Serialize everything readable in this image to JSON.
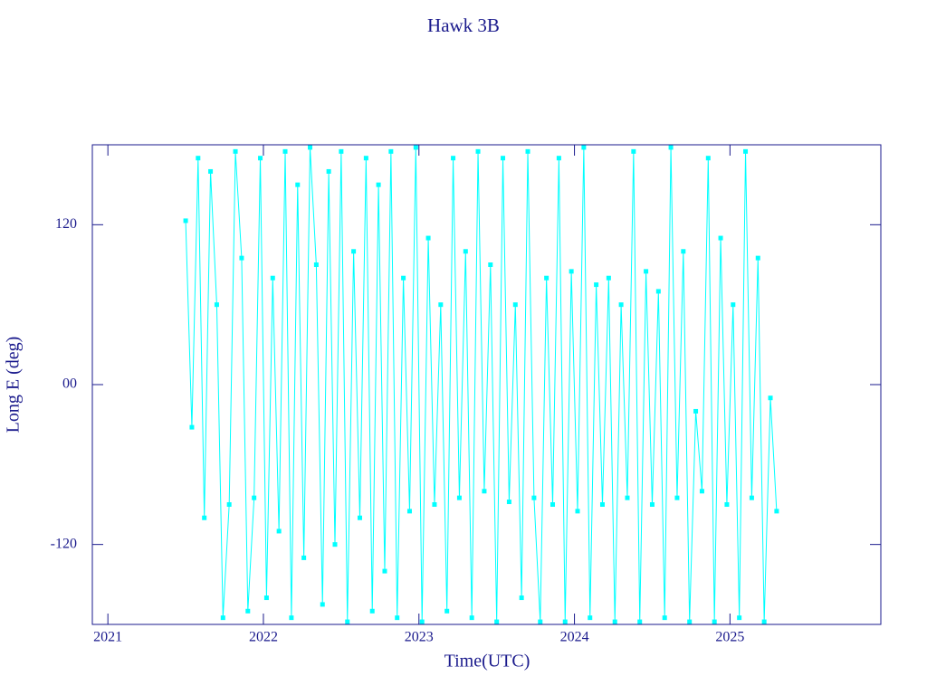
{
  "chart_data": {
    "type": "line",
    "title": "Hawk 3B",
    "x_label": "Time(UTC)",
    "y_label": "Long E (deg)",
    "color": "#00ffff",
    "xlim": [
      2020.9,
      2025.97
    ],
    "xticks": [
      2021,
      2022,
      2023,
      2024,
      2025
    ],
    "ylim": [
      -180,
      180
    ],
    "yticks": [
      -120,
      {
        "value": 0,
        "label": "00"
      },
      120
    ],
    "x": [
      2021.5,
      2021.54,
      2021.58,
      2021.62,
      2021.66,
      2021.7,
      2021.74,
      2021.78,
      2021.82,
      2021.86,
      2021.9,
      2021.94,
      2021.98,
      2022.02,
      2022.06,
      2022.1,
      2022.14,
      2022.18,
      2022.22,
      2022.26,
      2022.3,
      2022.34,
      2022.38,
      2022.42,
      2022.46,
      2022.5,
      2022.54,
      2022.58,
      2022.62,
      2022.66,
      2022.7,
      2022.74,
      2022.78,
      2022.82,
      2022.86,
      2022.9,
      2022.94,
      2022.98,
      2023.02,
      2023.06,
      2023.1,
      2023.14,
      2023.18,
      2023.22,
      2023.26,
      2023.3,
      2023.34,
      2023.38,
      2023.42,
      2023.46,
      2023.5,
      2023.54,
      2023.58,
      2023.62,
      2023.66,
      2023.7,
      2023.74,
      2023.78,
      2023.82,
      2023.86,
      2023.9,
      2023.94,
      2023.98,
      2024.02,
      2024.06,
      2024.1,
      2024.14,
      2024.18,
      2024.22,
      2024.26,
      2024.3,
      2024.34,
      2024.38,
      2024.42,
      2024.46,
      2024.5,
      2024.54,
      2024.58,
      2024.62,
      2024.66,
      2024.7,
      2024.74,
      2024.78,
      2024.82,
      2024.86,
      2024.9,
      2024.94,
      2024.98,
      2025.02,
      2025.06,
      2025.1,
      2025.14,
      2025.18,
      2025.22,
      2025.26,
      2025.3
    ],
    "values": [
      123,
      -32,
      170,
      -100,
      160,
      60,
      -175,
      -90,
      175,
      95,
      -170,
      -85,
      170,
      -160,
      80,
      -110,
      175,
      -175,
      150,
      -130,
      178,
      90,
      -165,
      160,
      -120,
      175,
      -178,
      100,
      -100,
      170,
      -170,
      150,
      -140,
      175,
      -175,
      80,
      -95,
      178,
      -178,
      110,
      -90,
      60,
      -170,
      170,
      -85,
      100,
      -175,
      175,
      -80,
      90,
      -178,
      170,
      -88,
      60,
      -160,
      175,
      -85,
      -178,
      80,
      -90,
      170,
      -178,
      85,
      -95,
      178,
      -175,
      75,
      -90,
      80,
      -178,
      60,
      -85,
      175,
      -178,
      85,
      -90,
      70,
      -175,
      178,
      -85,
      100,
      -178,
      -20,
      -80,
      170,
      -178,
      110,
      -90,
      60,
      -175,
      175,
      -85,
      95,
      -178,
      -10,
      -95
    ]
  }
}
